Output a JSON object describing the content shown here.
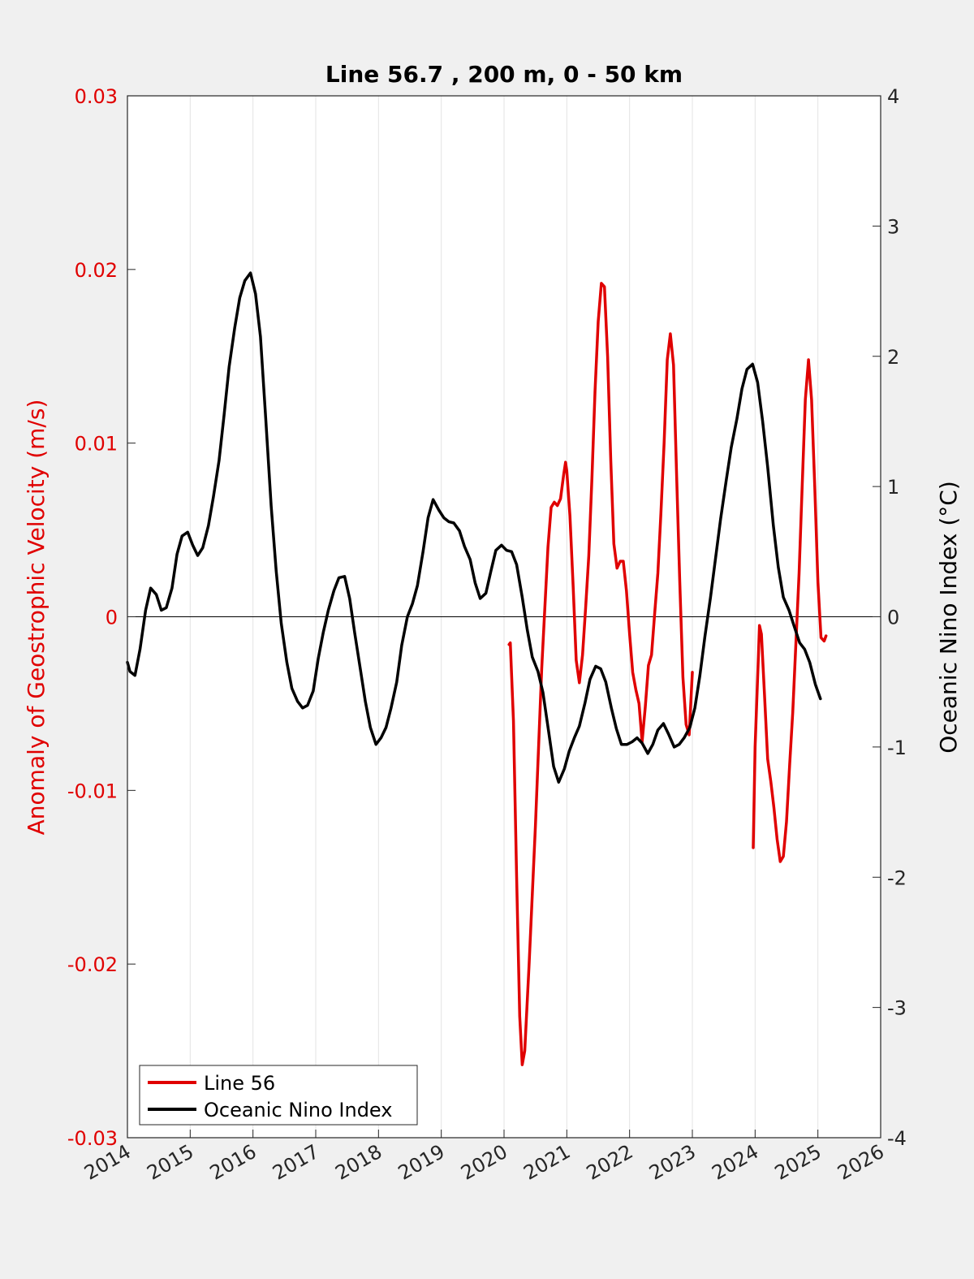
{
  "chart_data": {
    "type": "line",
    "title": "Line 56.7 , 200 m, 0 - 50 km",
    "x_axis": {
      "range": [
        2014,
        2026
      ],
      "ticks": [
        "2014",
        "2015",
        "2016",
        "2017",
        "2018",
        "2019",
        "2020",
        "2021",
        "2022",
        "2023",
        "2024",
        "2025",
        "2026"
      ],
      "grid": true
    },
    "y_left": {
      "label": "Anomaly of Geostrophic Velocity (m/s)",
      "range": [
        -0.03,
        0.03
      ],
      "ticks": [
        "-0.03",
        "-0.02",
        "-0.01",
        "0",
        "0.01",
        "0.02",
        "0.03"
      ],
      "color": "#e00000"
    },
    "y_right": {
      "label": "Oceanic Nino Index (°C)",
      "range": [
        -4,
        4
      ],
      "ticks": [
        "-4",
        "-3",
        "-2",
        "-1",
        "0",
        "1",
        "2",
        "3",
        "4"
      ],
      "color": "#000000"
    },
    "zero_line": true,
    "legend": {
      "position": "bottom-left"
    },
    "series": [
      {
        "name": "Line 56",
        "axis": "left",
        "color": "#e00000",
        "segments": [
          [
            [
              2020.08,
              -0.0016
            ],
            [
              2020.1,
              -0.0015
            ],
            [
              2020.15,
              -0.006
            ],
            [
              2020.2,
              -0.015
            ],
            [
              2020.25,
              -0.023
            ],
            [
              2020.29,
              -0.0258
            ],
            [
              2020.33,
              -0.025
            ],
            [
              2020.4,
              -0.02
            ],
            [
              2020.5,
              -0.012
            ],
            [
              2020.6,
              -0.003
            ],
            [
              2020.7,
              0.004
            ],
            [
              2020.75,
              0.0063
            ],
            [
              2020.8,
              0.0066
            ],
            [
              2020.85,
              0.0064
            ],
            [
              2020.9,
              0.0068
            ],
            [
              2020.95,
              0.0082
            ],
            [
              2020.98,
              0.0089
            ],
            [
              2021.0,
              0.0084
            ],
            [
              2021.05,
              0.0058
            ],
            [
              2021.1,
              0.0018
            ],
            [
              2021.15,
              -0.0025
            ],
            [
              2021.2,
              -0.0038
            ],
            [
              2021.25,
              -0.0022
            ],
            [
              2021.3,
              0.0005
            ],
            [
              2021.35,
              0.0035
            ],
            [
              2021.4,
              0.008
            ],
            [
              2021.45,
              0.013
            ],
            [
              2021.5,
              0.017
            ],
            [
              2021.55,
              0.0192
            ],
            [
              2021.6,
              0.019
            ],
            [
              2021.65,
              0.015
            ],
            [
              2021.7,
              0.009
            ],
            [
              2021.75,
              0.0042
            ],
            [
              2021.8,
              0.0028
            ],
            [
              2021.85,
              0.0032
            ],
            [
              2021.9,
              0.0032
            ],
            [
              2021.95,
              0.0015
            ],
            [
              2022.0,
              -0.001
            ],
            [
              2022.05,
              -0.0032
            ],
            [
              2022.1,
              -0.0042
            ],
            [
              2022.15,
              -0.005
            ],
            [
              2022.2,
              -0.0072
            ],
            [
              2022.25,
              -0.0052
            ],
            [
              2022.3,
              -0.0028
            ],
            [
              2022.35,
              -0.0022
            ],
            [
              2022.4,
              0.0002
            ],
            [
              2022.45,
              0.0025
            ],
            [
              2022.5,
              0.006
            ],
            [
              2022.55,
              0.01
            ],
            [
              2022.6,
              0.0148
            ],
            [
              2022.65,
              0.0163
            ],
            [
              2022.7,
              0.0145
            ],
            [
              2022.75,
              0.008
            ],
            [
              2022.8,
              0.002
            ],
            [
              2022.85,
              -0.0035
            ],
            [
              2022.9,
              -0.0062
            ],
            [
              2022.95,
              -0.0068
            ],
            [
              2023.0,
              -0.0032
            ]
          ],
          [
            [
              2023.97,
              -0.0133
            ],
            [
              2024.0,
              -0.0075
            ],
            [
              2024.05,
              -0.0025
            ],
            [
              2024.07,
              -0.0005
            ],
            [
              2024.1,
              -0.001
            ],
            [
              2024.15,
              -0.0045
            ],
            [
              2024.2,
              -0.0082
            ],
            [
              2024.25,
              -0.0095
            ],
            [
              2024.3,
              -0.011
            ],
            [
              2024.35,
              -0.0128
            ],
            [
              2024.4,
              -0.0141
            ],
            [
              2024.45,
              -0.0138
            ],
            [
              2024.5,
              -0.0118
            ],
            [
              2024.55,
              -0.0085
            ],
            [
              2024.6,
              -0.0055
            ],
            [
              2024.65,
              -0.0015
            ],
            [
              2024.7,
              0.0025
            ],
            [
              2024.75,
              0.0075
            ],
            [
              2024.8,
              0.0125
            ],
            [
              2024.85,
              0.0148
            ],
            [
              2024.9,
              0.0125
            ],
            [
              2024.95,
              0.0075
            ],
            [
              2025.0,
              0.002
            ],
            [
              2025.05,
              -0.0012
            ],
            [
              2025.1,
              -0.0014
            ],
            [
              2025.13,
              -0.0011
            ]
          ]
        ]
      },
      {
        "name": "Oceanic Nino Index",
        "axis": "right",
        "color": "#000000",
        "segments": [
          [
            [
              2014.0,
              -0.35
            ],
            [
              2014.04,
              -0.42
            ],
            [
              2014.12,
              -0.45
            ],
            [
              2014.2,
              -0.25
            ],
            [
              2014.29,
              0.05
            ],
            [
              2014.37,
              0.22
            ],
            [
              2014.46,
              0.17
            ],
            [
              2014.54,
              0.05
            ],
            [
              2014.62,
              0.07
            ],
            [
              2014.71,
              0.22
            ],
            [
              2014.79,
              0.48
            ],
            [
              2014.87,
              0.62
            ],
            [
              2014.96,
              0.65
            ],
            [
              2015.04,
              0.55
            ],
            [
              2015.12,
              0.47
            ],
            [
              2015.2,
              0.53
            ],
            [
              2015.29,
              0.7
            ],
            [
              2015.37,
              0.92
            ],
            [
              2015.46,
              1.2
            ],
            [
              2015.54,
              1.55
            ],
            [
              2015.62,
              1.92
            ],
            [
              2015.71,
              2.22
            ],
            [
              2015.79,
              2.45
            ],
            [
              2015.87,
              2.58
            ],
            [
              2015.96,
              2.64
            ],
            [
              2016.04,
              2.48
            ],
            [
              2016.12,
              2.15
            ],
            [
              2016.2,
              1.55
            ],
            [
              2016.29,
              0.85
            ],
            [
              2016.37,
              0.35
            ],
            [
              2016.45,
              -0.05
            ],
            [
              2016.54,
              -0.35
            ],
            [
              2016.62,
              -0.55
            ],
            [
              2016.71,
              -0.65
            ],
            [
              2016.79,
              -0.7
            ],
            [
              2016.87,
              -0.68
            ],
            [
              2016.96,
              -0.57
            ],
            [
              2017.04,
              -0.32
            ],
            [
              2017.12,
              -0.12
            ],
            [
              2017.2,
              0.05
            ],
            [
              2017.29,
              0.2
            ],
            [
              2017.37,
              0.3
            ],
            [
              2017.46,
              0.31
            ],
            [
              2017.54,
              0.14
            ],
            [
              2017.62,
              -0.12
            ],
            [
              2017.71,
              -0.4
            ],
            [
              2017.79,
              -0.65
            ],
            [
              2017.87,
              -0.85
            ],
            [
              2017.96,
              -0.98
            ],
            [
              2018.04,
              -0.93
            ],
            [
              2018.12,
              -0.85
            ],
            [
              2018.2,
              -0.7
            ],
            [
              2018.29,
              -0.5
            ],
            [
              2018.37,
              -0.22
            ],
            [
              2018.46,
              0.0
            ],
            [
              2018.54,
              0.1
            ],
            [
              2018.62,
              0.24
            ],
            [
              2018.71,
              0.5
            ],
            [
              2018.79,
              0.76
            ],
            [
              2018.87,
              0.9
            ],
            [
              2018.96,
              0.82
            ],
            [
              2019.04,
              0.76
            ],
            [
              2019.12,
              0.73
            ],
            [
              2019.2,
              0.72
            ],
            [
              2019.29,
              0.66
            ],
            [
              2019.37,
              0.54
            ],
            [
              2019.46,
              0.44
            ],
            [
              2019.54,
              0.26
            ],
            [
              2019.62,
              0.14
            ],
            [
              2019.71,
              0.18
            ],
            [
              2019.79,
              0.35
            ],
            [
              2019.87,
              0.51
            ],
            [
              2019.96,
              0.55
            ],
            [
              2020.04,
              0.51
            ],
            [
              2020.12,
              0.5
            ],
            [
              2020.2,
              0.4
            ],
            [
              2020.29,
              0.15
            ],
            [
              2020.37,
              -0.1
            ],
            [
              2020.45,
              -0.31
            ],
            [
              2020.54,
              -0.42
            ],
            [
              2020.62,
              -0.58
            ],
            [
              2020.71,
              -0.88
            ],
            [
              2020.79,
              -1.15
            ],
            [
              2020.87,
              -1.27
            ],
            [
              2020.96,
              -1.17
            ],
            [
              2021.04,
              -1.03
            ],
            [
              2021.12,
              -0.93
            ],
            [
              2021.2,
              -0.84
            ],
            [
              2021.29,
              -0.66
            ],
            [
              2021.37,
              -0.48
            ],
            [
              2021.46,
              -0.38
            ],
            [
              2021.54,
              -0.4
            ],
            [
              2021.62,
              -0.5
            ],
            [
              2021.71,
              -0.7
            ],
            [
              2021.79,
              -0.86
            ],
            [
              2021.87,
              -0.98
            ],
            [
              2021.96,
              -0.98
            ],
            [
              2022.04,
              -0.96
            ],
            [
              2022.12,
              -0.93
            ],
            [
              2022.2,
              -0.97
            ],
            [
              2022.29,
              -1.05
            ],
            [
              2022.37,
              -0.98
            ],
            [
              2022.45,
              -0.87
            ],
            [
              2022.54,
              -0.82
            ],
            [
              2022.62,
              -0.9
            ],
            [
              2022.71,
              -1.0
            ],
            [
              2022.79,
              -0.98
            ],
            [
              2022.87,
              -0.93
            ],
            [
              2022.96,
              -0.85
            ],
            [
              2023.04,
              -0.7
            ],
            [
              2023.12,
              -0.45
            ],
            [
              2023.2,
              -0.15
            ],
            [
              2023.29,
              0.15
            ],
            [
              2023.37,
              0.45
            ],
            [
              2023.45,
              0.75
            ],
            [
              2023.54,
              1.05
            ],
            [
              2023.62,
              1.3
            ],
            [
              2023.71,
              1.52
            ],
            [
              2023.79,
              1.75
            ],
            [
              2023.87,
              1.9
            ],
            [
              2023.96,
              1.94
            ],
            [
              2024.04,
              1.8
            ],
            [
              2024.12,
              1.5
            ],
            [
              2024.2,
              1.15
            ],
            [
              2024.29,
              0.7
            ],
            [
              2024.37,
              0.38
            ],
            [
              2024.45,
              0.15
            ],
            [
              2024.54,
              0.05
            ],
            [
              2024.62,
              -0.07
            ],
            [
              2024.71,
              -0.2
            ],
            [
              2024.79,
              -0.25
            ],
            [
              2024.87,
              -0.35
            ],
            [
              2024.96,
              -0.52
            ],
            [
              2025.04,
              -0.63
            ]
          ]
        ]
      }
    ]
  }
}
